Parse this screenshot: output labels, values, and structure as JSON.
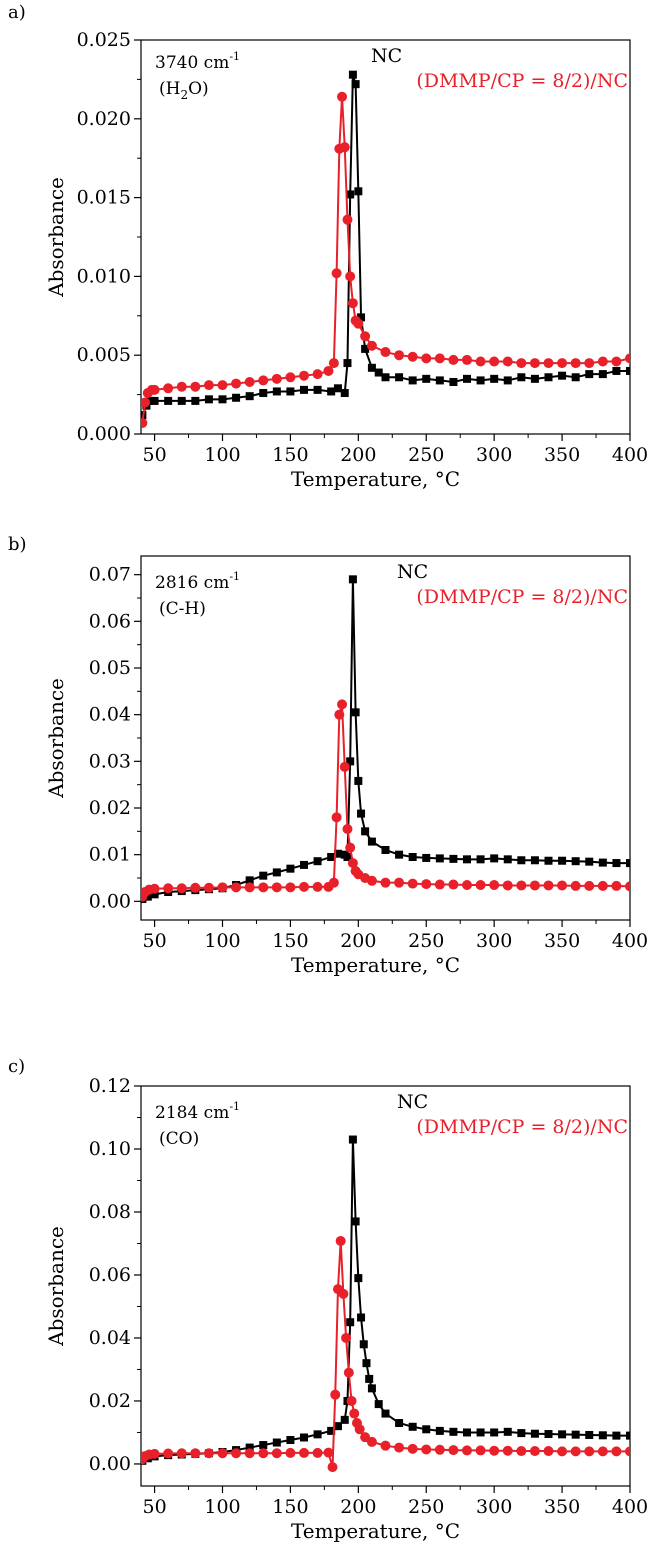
{
  "colors": {
    "nc": "#000000",
    "dmmp": "#e8202a"
  },
  "chart_data": [
    {
      "panel_label": "a)",
      "type": "line",
      "xlabel": "Temperature, °C",
      "ylabel": "Absorbance",
      "xlim": [
        40,
        400
      ],
      "ylim": [
        0,
        0.025
      ],
      "xticks": [
        50,
        100,
        150,
        200,
        250,
        300,
        350,
        400
      ],
      "yticks": [
        0.0,
        0.005,
        0.01,
        0.015,
        0.02,
        0.025
      ],
      "ytick_labels": [
        "0.000",
        "0.005",
        "0.010",
        "0.015",
        "0.020",
        "0.025"
      ],
      "annotation": {
        "wavenumber": "3740 cm",
        "superscript": "-1",
        "species_pre": "(H",
        "species_sub": "2",
        "species_post": "O)"
      },
      "legend_placement": "top-right",
      "series": [
        {
          "name": "NC",
          "marker": "square",
          "color": "#000000",
          "x": [
            41,
            44,
            47,
            50,
            60,
            70,
            80,
            90,
            100,
            110,
            120,
            130,
            140,
            150,
            160,
            170,
            180,
            185,
            190,
            192,
            194,
            196,
            198,
            200,
            202,
            205,
            210,
            215,
            220,
            230,
            240,
            250,
            260,
            270,
            280,
            290,
            300,
            310,
            320,
            330,
            340,
            350,
            360,
            370,
            380,
            390,
            400
          ],
          "y": [
            0.0012,
            0.0018,
            0.0021,
            0.0021,
            0.0021,
            0.0021,
            0.0021,
            0.0022,
            0.0022,
            0.0023,
            0.0024,
            0.0026,
            0.0027,
            0.0027,
            0.0028,
            0.0028,
            0.0027,
            0.0029,
            0.0026,
            0.0045,
            0.0152,
            0.0228,
            0.0222,
            0.0154,
            0.0074,
            0.0054,
            0.0042,
            0.0039,
            0.0036,
            0.0036,
            0.0034,
            0.0035,
            0.0034,
            0.0033,
            0.0035,
            0.0034,
            0.0035,
            0.0034,
            0.0036,
            0.0035,
            0.0036,
            0.0037,
            0.0036,
            0.0038,
            0.0038,
            0.004,
            0.004
          ]
        },
        {
          "name": "(DMMP/CP = 8/2)/NC",
          "marker": "circle",
          "color": "#e8202a",
          "x": [
            41,
            43,
            45,
            48,
            50,
            60,
            70,
            80,
            90,
            100,
            110,
            120,
            130,
            140,
            150,
            160,
            170,
            178,
            182,
            184,
            186,
            188,
            190,
            192,
            194,
            196,
            198,
            200,
            205,
            210,
            220,
            230,
            240,
            250,
            260,
            270,
            280,
            290,
            300,
            310,
            320,
            330,
            340,
            350,
            360,
            370,
            380,
            390,
            400
          ],
          "y": [
            0.0007,
            0.002,
            0.0026,
            0.0028,
            0.0028,
            0.0029,
            0.003,
            0.003,
            0.0031,
            0.0031,
            0.0032,
            0.0033,
            0.0034,
            0.0035,
            0.0036,
            0.0037,
            0.0038,
            0.004,
            0.0045,
            0.0102,
            0.0181,
            0.0214,
            0.0182,
            0.0136,
            0.01,
            0.0083,
            0.0072,
            0.007,
            0.0062,
            0.0056,
            0.0052,
            0.005,
            0.0049,
            0.0048,
            0.0048,
            0.0047,
            0.0047,
            0.0046,
            0.0046,
            0.0046,
            0.0045,
            0.0045,
            0.0045,
            0.0045,
            0.0045,
            0.0045,
            0.0046,
            0.0046,
            0.0048
          ]
        }
      ]
    },
    {
      "panel_label": "b)",
      "type": "line",
      "xlabel": "Temperature, °C",
      "ylabel": "Absorbance",
      "xlim": [
        40,
        400
      ],
      "ylim": [
        -0.004,
        0.074
      ],
      "xticks": [
        50,
        100,
        150,
        200,
        250,
        300,
        350,
        400
      ],
      "yticks": [
        0.0,
        0.01,
        0.02,
        0.03,
        0.04,
        0.05,
        0.06,
        0.07
      ],
      "ytick_labels": [
        "0.00",
        "0.01",
        "0.02",
        "0.03",
        "0.04",
        "0.05",
        "0.06",
        "0.07"
      ],
      "annotation": {
        "wavenumber": "2816 cm",
        "superscript": "-1",
        "species_pre": "(C-H)",
        "species_sub": "",
        "species_post": ""
      },
      "legend_placement": "top-right",
      "series": [
        {
          "name": "NC",
          "marker": "square",
          "color": "#000000",
          "x": [
            41,
            45,
            50,
            60,
            70,
            80,
            90,
            100,
            110,
            120,
            130,
            140,
            150,
            160,
            170,
            180,
            185,
            190,
            192,
            194,
            196,
            198,
            200,
            202,
            205,
            210,
            220,
            230,
            240,
            250,
            260,
            270,
            280,
            290,
            300,
            310,
            320,
            330,
            340,
            350,
            360,
            370,
            380,
            390,
            400
          ],
          "y": [
            0.0005,
            0.001,
            0.0015,
            0.002,
            0.0022,
            0.0024,
            0.0026,
            0.0028,
            0.0035,
            0.0045,
            0.0055,
            0.0062,
            0.007,
            0.0078,
            0.0086,
            0.0095,
            0.0102,
            0.01,
            0.0095,
            0.03,
            0.069,
            0.0405,
            0.0258,
            0.0188,
            0.015,
            0.0128,
            0.011,
            0.01,
            0.0095,
            0.0093,
            0.0092,
            0.0091,
            0.009,
            0.009,
            0.0092,
            0.009,
            0.0088,
            0.0088,
            0.0087,
            0.0087,
            0.0086,
            0.0085,
            0.0083,
            0.0082,
            0.0082
          ]
        },
        {
          "name": "(DMMP/CP = 8/2)/NC",
          "marker": "circle",
          "color": "#e8202a",
          "x": [
            41,
            43,
            46,
            50,
            60,
            70,
            80,
            90,
            100,
            110,
            120,
            130,
            140,
            150,
            160,
            170,
            178,
            182,
            184,
            186,
            188,
            190,
            192,
            194,
            196,
            198,
            200,
            205,
            210,
            220,
            230,
            240,
            250,
            260,
            270,
            280,
            290,
            300,
            310,
            320,
            330,
            340,
            350,
            360,
            370,
            380,
            390,
            400
          ],
          "y": [
            0.001,
            0.002,
            0.0025,
            0.0027,
            0.0028,
            0.0028,
            0.0029,
            0.0029,
            0.003,
            0.003,
            0.003,
            0.003,
            0.003,
            0.003,
            0.0031,
            0.0031,
            0.0031,
            0.004,
            0.018,
            0.04,
            0.0422,
            0.0288,
            0.0155,
            0.0115,
            0.0082,
            0.0065,
            0.0058,
            0.005,
            0.0044,
            0.004,
            0.004,
            0.0038,
            0.0037,
            0.0036,
            0.0036,
            0.0035,
            0.0035,
            0.0035,
            0.0034,
            0.0034,
            0.0034,
            0.0034,
            0.0034,
            0.0033,
            0.0033,
            0.0033,
            0.0033,
            0.0032
          ]
        }
      ]
    },
    {
      "panel_label": "c)",
      "type": "line",
      "xlabel": "Temperature, °C",
      "ylabel": "Absorbance",
      "xlim": [
        40,
        400
      ],
      "ylim": [
        -0.007,
        0.12
      ],
      "xticks": [
        50,
        100,
        150,
        200,
        250,
        300,
        350,
        400
      ],
      "yticks": [
        0.0,
        0.02,
        0.04,
        0.06,
        0.08,
        0.1,
        0.12
      ],
      "ytick_labels": [
        "0.00",
        "0.02",
        "0.04",
        "0.06",
        "0.08",
        "0.10",
        "0.12"
      ],
      "annotation": {
        "wavenumber": "2184 cm",
        "superscript": "-1",
        "species_pre": "(CO)",
        "species_sub": "",
        "species_post": ""
      },
      "legend_placement": "top-right",
      "series": [
        {
          "name": "NC",
          "marker": "square",
          "color": "#000000",
          "x": [
            41,
            45,
            50,
            60,
            70,
            80,
            90,
            100,
            110,
            120,
            130,
            140,
            150,
            160,
            170,
            180,
            185,
            190,
            192,
            194,
            196,
            198,
            200,
            202,
            204,
            206,
            208,
            210,
            215,
            220,
            230,
            240,
            250,
            260,
            270,
            280,
            290,
            300,
            310,
            320,
            330,
            340,
            350,
            360,
            370,
            380,
            390,
            400
          ],
          "y": [
            0.001,
            0.0018,
            0.0024,
            0.0028,
            0.003,
            0.0032,
            0.0034,
            0.0038,
            0.0044,
            0.0052,
            0.006,
            0.0068,
            0.0076,
            0.0084,
            0.0094,
            0.0105,
            0.012,
            0.014,
            0.02,
            0.045,
            0.103,
            0.077,
            0.059,
            0.0465,
            0.038,
            0.032,
            0.027,
            0.024,
            0.019,
            0.016,
            0.013,
            0.0118,
            0.011,
            0.0105,
            0.0102,
            0.01,
            0.01,
            0.01,
            0.0102,
            0.0098,
            0.0096,
            0.0095,
            0.0094,
            0.0093,
            0.0092,
            0.0091,
            0.009,
            0.009
          ]
        },
        {
          "name": "(DMMP/CP = 8/2)/NC",
          "marker": "circle",
          "color": "#e8202a",
          "x": [
            41,
            43,
            46,
            50,
            60,
            70,
            80,
            90,
            100,
            110,
            120,
            130,
            140,
            150,
            160,
            170,
            178,
            181,
            183,
            185,
            187,
            189,
            191,
            193,
            195,
            197,
            199,
            201,
            205,
            210,
            220,
            230,
            240,
            250,
            260,
            270,
            280,
            290,
            300,
            310,
            320,
            330,
            340,
            350,
            360,
            370,
            380,
            390,
            400
          ],
          "y": [
            0.0015,
            0.0025,
            0.003,
            0.0032,
            0.0033,
            0.0034,
            0.0034,
            0.0034,
            0.0034,
            0.0034,
            0.0034,
            0.0034,
            0.0034,
            0.0035,
            0.0035,
            0.0035,
            0.0036,
            -0.001,
            0.022,
            0.0555,
            0.0708,
            0.054,
            0.04,
            0.029,
            0.02,
            0.016,
            0.013,
            0.011,
            0.0085,
            0.007,
            0.0058,
            0.0052,
            0.0048,
            0.0046,
            0.0045,
            0.0044,
            0.0043,
            0.0043,
            0.0042,
            0.0042,
            0.0041,
            0.0041,
            0.0041,
            0.004,
            0.004,
            0.004,
            0.004,
            0.004,
            0.004
          ]
        }
      ]
    }
  ]
}
